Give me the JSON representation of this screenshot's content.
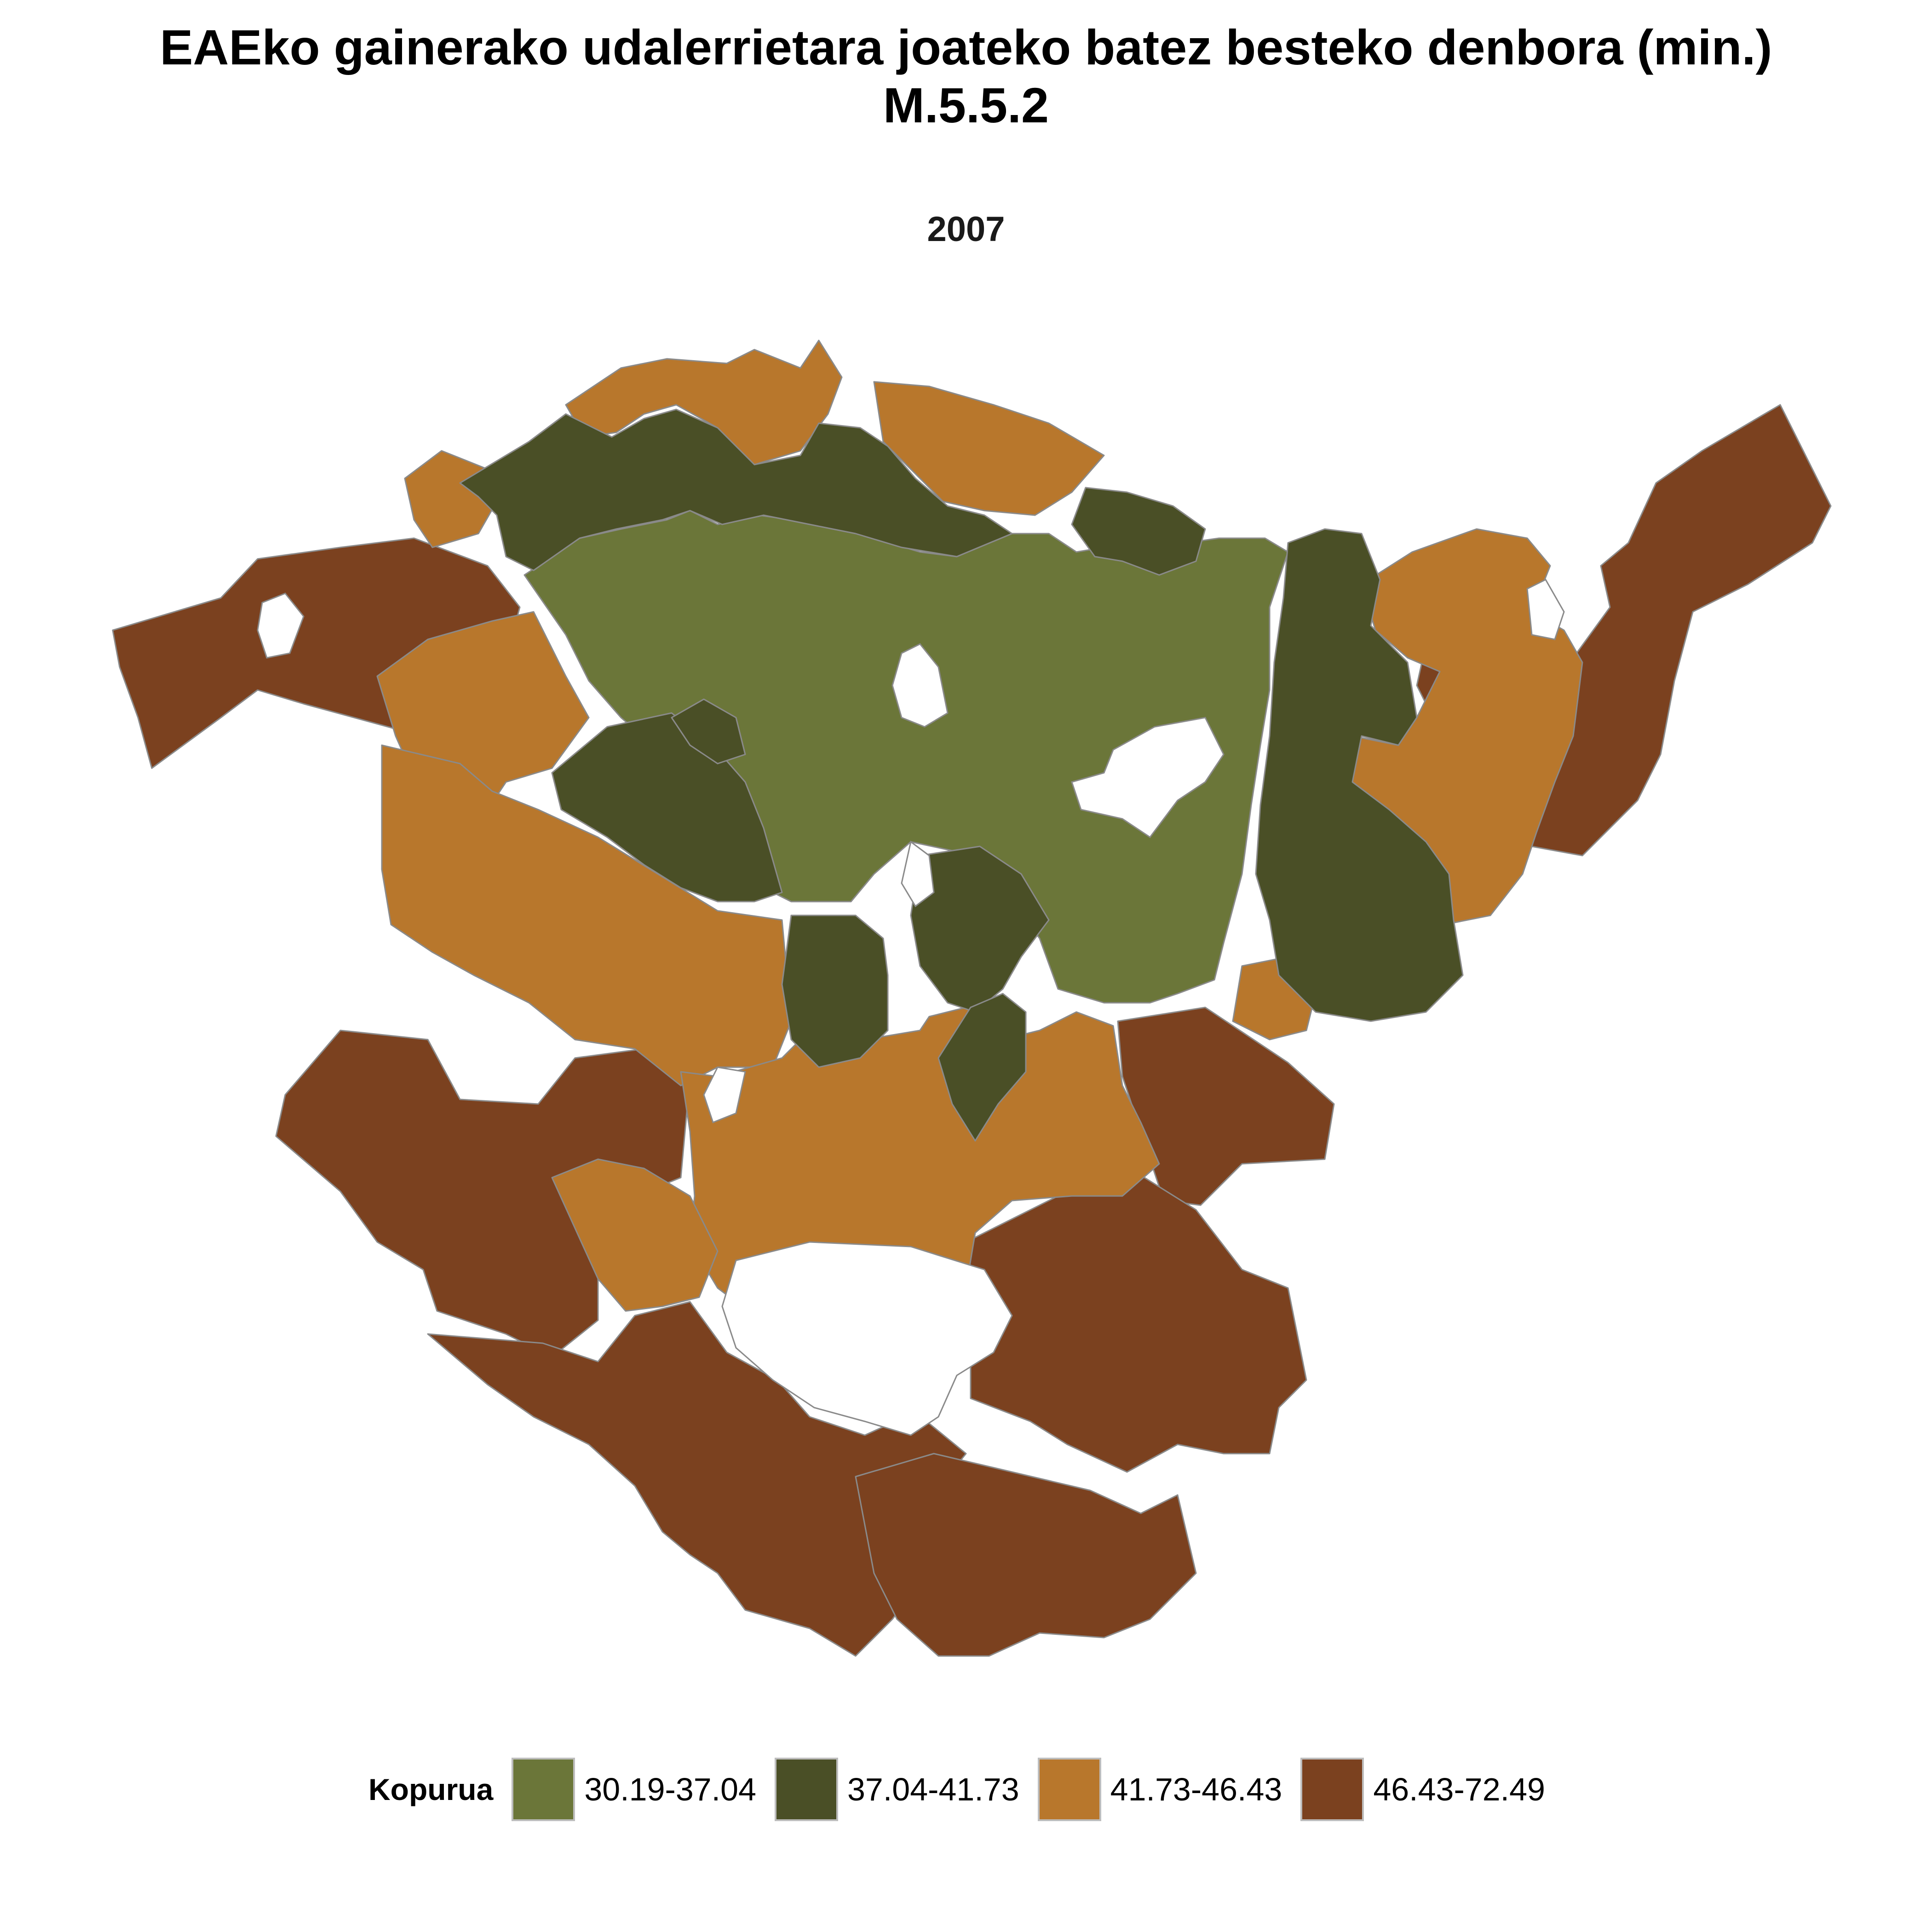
{
  "title": {
    "line1": "EAEko gainerako udalerrietara joateko batez besteko denbora (min.)",
    "line2": "M.5.5.2"
  },
  "subtitle": "2007",
  "legend": {
    "title": "Kopurua",
    "items": [
      {
        "label": "30.19-37.04",
        "color": "#6b7639"
      },
      {
        "label": "37.04-41.73",
        "color": "#4a4f26"
      },
      {
        "label": "41.73-46.43",
        "color": "#b8772c"
      },
      {
        "label": "46.43-72.49",
        "color": "#7b411f"
      }
    ]
  },
  "map": {
    "region": "Basque Autonomous Community (EAE) municipalities",
    "border_color": "#8a8a8a",
    "background": "#ffffff"
  }
}
